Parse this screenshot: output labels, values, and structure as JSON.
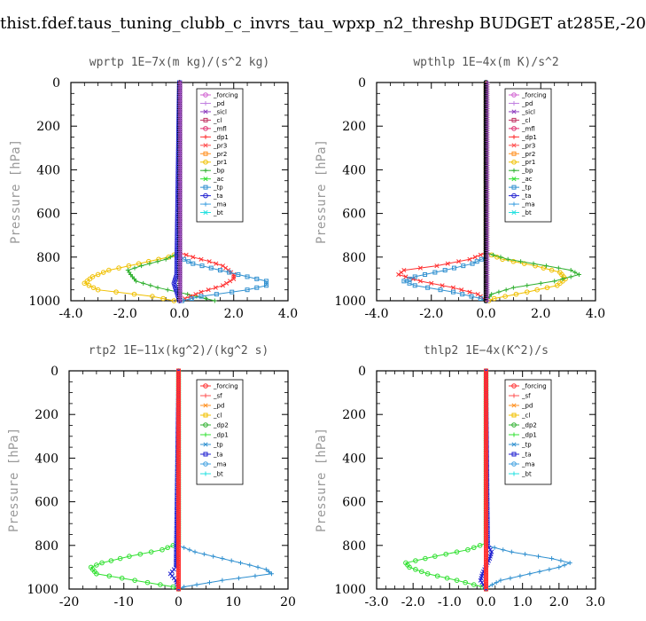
{
  "page_title": "thist.fdef.taus_tuning_clubb_c_invrs_tau_wpxp_n2_threshp  BUDGET at285E,-20",
  "chart_data": [
    {
      "type": "line",
      "title": "wprtp   1E−7x(m kg)/(s^2 kg)",
      "ylabel": "Pressure [hPa]",
      "xlim": [
        -4.0,
        4.0
      ],
      "ylim": [
        1000,
        0
      ],
      "xticks": [
        -4.0,
        -2.0,
        0.0,
        2.0,
        4.0
      ],
      "xtick_labels": [
        "-4.0",
        "-2.0",
        "0.0",
        "2.0",
        "4.0"
      ],
      "yticks": [
        0,
        200,
        400,
        600,
        800,
        1000
      ],
      "ytick_labels": [
        "0",
        "200",
        "400",
        "600",
        "800",
        "1000"
      ],
      "legend": [
        "_forcing",
        "_pd",
        "_sicl",
        "_cl",
        "_mfl",
        "_dp1",
        "_pr3",
        "_pr2",
        "_pr1",
        "_bp",
        "_ac",
        "_tp",
        "_ta",
        "_ma",
        "_bt"
      ],
      "series": [
        {
          "name": "_pr1",
          "color": "#f0c000",
          "p": [
            0,
            780,
            800,
            830,
            860,
            890,
            920,
            950,
            980,
            1000
          ],
          "x": [
            0,
            0,
            -0.4,
            -1.5,
            -2.6,
            -3.2,
            -3.5,
            -3.0,
            -1.0,
            -0.2
          ]
        },
        {
          "name": "_bp",
          "color": "#30b030",
          "p": [
            0,
            780,
            810,
            840,
            860,
            880,
            910,
            940,
            970,
            1000
          ],
          "x": [
            0,
            0,
            -0.5,
            -1.4,
            -1.9,
            -1.8,
            -1.6,
            -0.8,
            0.3,
            1.3
          ]
        },
        {
          "name": "_dp1",
          "color": "#ff3030",
          "p": [
            0,
            780,
            800,
            820,
            840,
            860,
            880,
            900,
            930,
            960,
            990
          ],
          "x": [
            0,
            0,
            0.5,
            1.1,
            1.6,
            1.8,
            2.0,
            2.0,
            1.6,
            0.8,
            0.2
          ]
        },
        {
          "name": "_tp",
          "color": "#3090d0",
          "p": [
            0,
            800,
            830,
            860,
            890,
            910,
            930,
            950,
            980,
            1000
          ],
          "x": [
            0,
            0,
            0.5,
            1.5,
            2.5,
            3.2,
            3.2,
            2.5,
            0.8,
            0.1
          ]
        },
        {
          "name": "_ta",
          "color": "#2020d0",
          "p": [
            0,
            880,
            920,
            960,
            1000
          ],
          "x": [
            0,
            -0.1,
            -0.2,
            -0.1,
            0
          ]
        },
        {
          "name": "_forcing",
          "color": "#000000",
          "p": [
            0,
            1000
          ],
          "x": [
            0,
            0
          ]
        },
        {
          "name": "_sicl",
          "color": "#a050c0",
          "p": [
            0,
            1000
          ],
          "x": [
            0.03,
            0.03
          ]
        }
      ]
    },
    {
      "type": "line",
      "title": "wpthlp   1E−4x(m K)/s^2",
      "ylabel": "Pressure [hPa]",
      "xlim": [
        -4.0,
        4.0
      ],
      "ylim": [
        1000,
        0
      ],
      "xticks": [
        -4.0,
        -2.0,
        0.0,
        2.0,
        4.0
      ],
      "xtick_labels": [
        "-4.0",
        "-2.0",
        "0.0",
        "2.0",
        "4.0"
      ],
      "yticks": [
        0,
        200,
        400,
        600,
        800,
        1000
      ],
      "ytick_labels": [
        "0",
        "200",
        "400",
        "600",
        "800",
        "1000"
      ],
      "legend": [
        "_forcing",
        "_pd",
        "_sicl",
        "_cl",
        "_mfl",
        "_dp1",
        "_pr3",
        "_pr2",
        "_pr1",
        "_bp",
        "_ac",
        "_tp",
        "_ta",
        "_ma",
        "_bt"
      ],
      "series": [
        {
          "name": "_pr1",
          "color": "#f0c000",
          "p": [
            0,
            780,
            810,
            840,
            870,
            900,
            930,
            960,
            990,
            1000
          ],
          "x": [
            0,
            0,
            0.6,
            1.8,
            2.7,
            2.9,
            2.6,
            1.5,
            0.3,
            0.1
          ]
        },
        {
          "name": "_bp",
          "color": "#30b030",
          "p": [
            0,
            780,
            810,
            840,
            860,
            880,
            910,
            940,
            970,
            1000
          ],
          "x": [
            0,
            0,
            0.8,
            2.2,
            3.1,
            3.4,
            2.5,
            1.0,
            0.2,
            0
          ]
        },
        {
          "name": "_dp1",
          "color": "#ff3030",
          "p": [
            0,
            780,
            810,
            840,
            860,
            880,
            910,
            940,
            970,
            1000
          ],
          "x": [
            0,
            0,
            -0.6,
            -1.8,
            -3.0,
            -3.2,
            -2.4,
            -1.2,
            -0.3,
            0
          ]
        },
        {
          "name": "_tp",
          "color": "#3090d0",
          "p": [
            0,
            800,
            830,
            860,
            890,
            910,
            930,
            960,
            990,
            1000
          ],
          "x": [
            0,
            0,
            -0.5,
            -1.5,
            -2.6,
            -3.0,
            -2.6,
            -1.2,
            -0.2,
            0
          ]
        },
        {
          "name": "_forcing",
          "color": "#000000",
          "p": [
            0,
            1000
          ],
          "x": [
            0,
            0
          ]
        },
        {
          "name": "_sicl",
          "color": "#a050c0",
          "p": [
            0,
            1000
          ],
          "x": [
            0.05,
            0.05
          ]
        }
      ]
    },
    {
      "type": "line",
      "title": "rtp2   1E−11x(kg^2)/(kg^2 s)",
      "ylabel": "Pressure [hPa]",
      "xlim": [
        -20,
        20
      ],
      "ylim": [
        1000,
        0
      ],
      "xticks": [
        -20,
        -10,
        0,
        10,
        20
      ],
      "xtick_labels": [
        "-20",
        "-10",
        "0",
        "10",
        "20"
      ],
      "yticks": [
        0,
        200,
        400,
        600,
        800,
        1000
      ],
      "ytick_labels": [
        "0",
        "200",
        "400",
        "600",
        "800",
        "1000"
      ],
      "legend": [
        "_forcing",
        "_sf",
        "_pd",
        "_cl",
        "_dp2",
        "_dp1",
        "_tp",
        "_ta",
        "_ma",
        "_bt"
      ],
      "series": [
        {
          "name": "_dp1",
          "color": "#30e030",
          "p": [
            0,
            790,
            820,
            850,
            880,
            900,
            930,
            960,
            990,
            1000
          ],
          "x": [
            0,
            0,
            -3,
            -9,
            -14,
            -16,
            -15,
            -8,
            -1,
            0
          ]
        },
        {
          "name": "_tp",
          "color": "#3090d0",
          "p": [
            0,
            800,
            830,
            860,
            890,
            910,
            930,
            960,
            990,
            1000
          ],
          "x": [
            0,
            0,
            3,
            8,
            13,
            16,
            17,
            8,
            1,
            0
          ]
        },
        {
          "name": "_ta",
          "color": "#2020d0",
          "p": [
            0,
            900,
            930,
            960,
            1000
          ],
          "x": [
            0,
            -0.5,
            -1.5,
            -0.5,
            0
          ]
        },
        {
          "name": "_forcing",
          "color": "#ff3030",
          "p": [
            0,
            1000
          ],
          "x": [
            0,
            0
          ]
        }
      ]
    },
    {
      "type": "line",
      "title": "thlp2   1E−4x(K^2)/s",
      "ylabel": "Pressure [hPa]",
      "xlim": [
        -3.0,
        3.0
      ],
      "ylim": [
        1000,
        0
      ],
      "xticks": [
        -3.0,
        -2.0,
        -1.0,
        0.0,
        1.0,
        2.0,
        3.0
      ],
      "xtick_labels": [
        "-3.0",
        "-2.0",
        "-1.0",
        "0.0",
        "1.0",
        "2.0",
        "3.0"
      ],
      "yticks": [
        0,
        200,
        400,
        600,
        800,
        1000
      ],
      "ytick_labels": [
        "0",
        "200",
        "400",
        "600",
        "800",
        "1000"
      ],
      "legend": [
        "_forcing",
        "_sf",
        "_pd",
        "_cl",
        "_dp2",
        "_dp1",
        "_tp",
        "_ta",
        "_ma",
        "_bt"
      ],
      "series": [
        {
          "name": "_dp1",
          "color": "#30e030",
          "p": [
            0,
            790,
            820,
            850,
            880,
            900,
            930,
            960,
            990,
            1000
          ],
          "x": [
            0,
            0,
            -0.5,
            -1.4,
            -2.2,
            -2.1,
            -1.6,
            -0.8,
            -0.1,
            0
          ]
        },
        {
          "name": "_tp",
          "color": "#3090d0",
          "p": [
            0,
            800,
            830,
            860,
            880,
            900,
            930,
            960,
            990,
            1000
          ],
          "x": [
            0,
            0,
            0.7,
            1.8,
            2.3,
            2.0,
            1.2,
            0.4,
            0.05,
            0
          ]
        },
        {
          "name": "_ta",
          "color": "#2020d0",
          "p": [
            0,
            800,
            830,
            860,
            930,
            960,
            1000
          ],
          "x": [
            0,
            0.05,
            0.15,
            0.1,
            -0.1,
            -0.15,
            0
          ]
        },
        {
          "name": "_forcing",
          "color": "#ff3030",
          "p": [
            0,
            1000
          ],
          "x": [
            0,
            0
          ]
        }
      ]
    }
  ],
  "legend_colors": {
    "_forcing": "#d060d0",
    "_pd": "#c080e0",
    "_sicl": "#9040c0",
    "_cl": "#c03060",
    "_mfl": "#e03070",
    "_dp1": "#ff3030",
    "_pr3": "#ff5050",
    "_pr2": "#ff9020",
    "_pr1": "#f0c000",
    "_bp": "#30b030",
    "_ac": "#30e030",
    "_tp": "#3090d0",
    "_ta": "#2020d0",
    "_ma": "#40a0e0",
    "_bt": "#20e0e0",
    "_sf": "#ff5050",
    "_dp2": "#30b030"
  },
  "legend_colors_lower": {
    "_forcing": "#ff3030",
    "_sf": "#ff5050",
    "_pd": "#ff9020",
    "_cl": "#f0c000",
    "_dp2": "#30b030",
    "_dp1": "#30e030",
    "_tp": "#3090d0",
    "_ta": "#2020d0",
    "_ma": "#40a0e0",
    "_bt": "#20e0e0"
  }
}
